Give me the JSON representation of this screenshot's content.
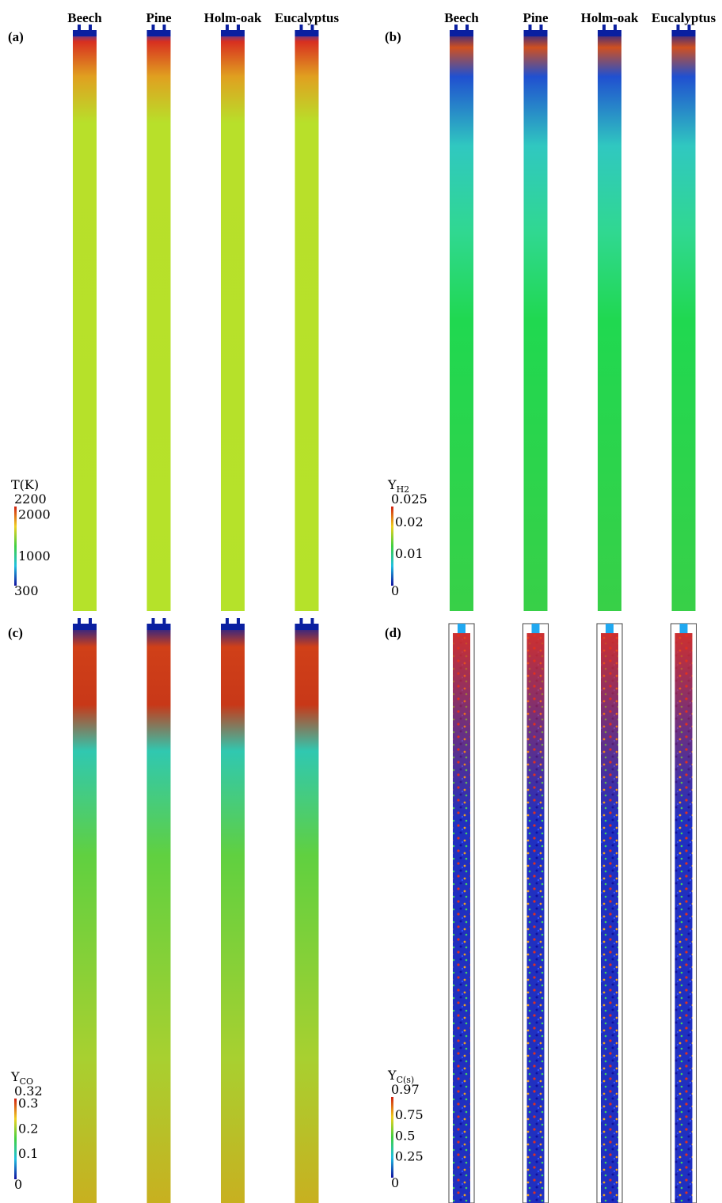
{
  "panels": [
    {
      "label": "(a)",
      "columns": [
        "Beech",
        "Pine",
        "Holm-oak",
        "Eucalyptus"
      ],
      "colorbar": {
        "title": "T(K)",
        "ticks": [
          2200,
          2000,
          1000,
          300
        ]
      }
    },
    {
      "label": "(b)",
      "columns": [
        "Beech",
        "Pine",
        "Holm-oak",
        "Eucalyptus"
      ],
      "colorbar": {
        "title": "Y",
        "title_sub": "H2",
        "ticks": [
          0.025,
          0.02,
          0.01,
          0
        ]
      }
    },
    {
      "label": "(c)",
      "colorbar": {
        "title": "Y",
        "title_sub": "CO",
        "ticks": [
          0.32,
          0.3,
          0.2,
          0.1,
          0
        ]
      }
    },
    {
      "label": "(d)",
      "colorbar": {
        "title": "Y",
        "title_sub": "C(s)",
        "ticks": [
          0.97,
          0.75,
          0.5,
          0.25,
          0
        ]
      }
    }
  ]
}
